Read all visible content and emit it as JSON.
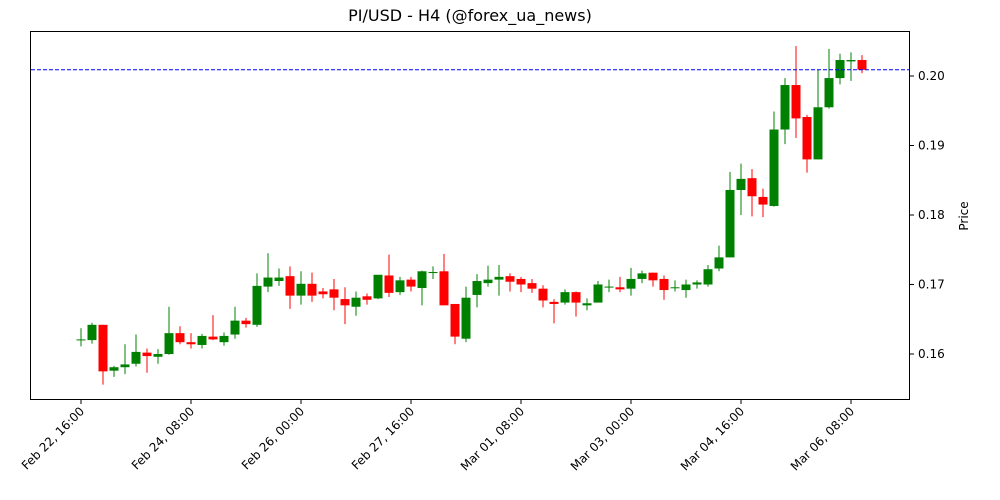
{
  "chart_data": {
    "type": "candlestick",
    "title": "PI/USD - H4 (@forex_ua_news)",
    "xlabel": "",
    "ylabel": "Price",
    "ylim": [
      0.1535,
      0.2064
    ],
    "y_ticks": [
      0.16,
      0.17,
      0.18,
      0.19,
      0.2
    ],
    "y_tick_labels": [
      "0.16",
      "0.17",
      "0.18",
      "0.19",
      "0.20"
    ],
    "x_tick_labels": [
      "Feb 22, 16:00",
      "Feb 24, 08:00",
      "Feb 26, 00:00",
      "Feb 27, 16:00",
      "Mar 01, 08:00",
      "Mar 03, 00:00",
      "Mar 04, 16:00",
      "Mar 06, 08:00"
    ],
    "x_tick_indices": [
      0,
      10,
      20,
      30,
      40,
      50,
      60,
      70
    ],
    "timeframe": "H4",
    "up_color": "#008000",
    "down_color": "#ff0000",
    "reference_line": {
      "value": 0.2009,
      "color": "#0000ff",
      "style": "dashed"
    },
    "grid": false,
    "candles": [
      {
        "o": 0.1621,
        "h": 0.1637,
        "l": 0.1611,
        "c": 0.1621
      },
      {
        "o": 0.162,
        "h": 0.1645,
        "l": 0.1615,
        "c": 0.1642
      },
      {
        "o": 0.1642,
        "h": 0.1642,
        "l": 0.1556,
        "c": 0.1575
      },
      {
        "o": 0.1576,
        "h": 0.1583,
        "l": 0.1567,
        "c": 0.1581
      },
      {
        "o": 0.1581,
        "h": 0.1614,
        "l": 0.1571,
        "c": 0.1585
      },
      {
        "o": 0.1586,
        "h": 0.1628,
        "l": 0.1582,
        "c": 0.1603
      },
      {
        "o": 0.1602,
        "h": 0.1608,
        "l": 0.1573,
        "c": 0.1597
      },
      {
        "o": 0.1596,
        "h": 0.1607,
        "l": 0.1586,
        "c": 0.16
      },
      {
        "o": 0.16,
        "h": 0.1668,
        "l": 0.1599,
        "c": 0.163
      },
      {
        "o": 0.163,
        "h": 0.164,
        "l": 0.1614,
        "c": 0.1617
      },
      {
        "o": 0.1617,
        "h": 0.163,
        "l": 0.1608,
        "c": 0.1614
      },
      {
        "o": 0.1613,
        "h": 0.1629,
        "l": 0.1608,
        "c": 0.1626
      },
      {
        "o": 0.1625,
        "h": 0.1656,
        "l": 0.162,
        "c": 0.1621
      },
      {
        "o": 0.1617,
        "h": 0.1631,
        "l": 0.1612,
        "c": 0.1626
      },
      {
        "o": 0.1628,
        "h": 0.1668,
        "l": 0.1622,
        "c": 0.1648
      },
      {
        "o": 0.1648,
        "h": 0.1652,
        "l": 0.1638,
        "c": 0.1643
      },
      {
        "o": 0.1642,
        "h": 0.1716,
        "l": 0.1639,
        "c": 0.1698
      },
      {
        "o": 0.1697,
        "h": 0.1745,
        "l": 0.1689,
        "c": 0.171
      },
      {
        "o": 0.1705,
        "h": 0.1723,
        "l": 0.1698,
        "c": 0.171
      },
      {
        "o": 0.1712,
        "h": 0.1726,
        "l": 0.1665,
        "c": 0.1684
      },
      {
        "o": 0.1684,
        "h": 0.1719,
        "l": 0.1671,
        "c": 0.1701
      },
      {
        "o": 0.1701,
        "h": 0.1717,
        "l": 0.1675,
        "c": 0.1684
      },
      {
        "o": 0.169,
        "h": 0.1695,
        "l": 0.168,
        "c": 0.1686
      },
      {
        "o": 0.1693,
        "h": 0.1708,
        "l": 0.1663,
        "c": 0.1681
      },
      {
        "o": 0.1679,
        "h": 0.1696,
        "l": 0.1643,
        "c": 0.167
      },
      {
        "o": 0.1668,
        "h": 0.169,
        "l": 0.1655,
        "c": 0.1681
      },
      {
        "o": 0.1683,
        "h": 0.1687,
        "l": 0.1671,
        "c": 0.1678
      },
      {
        "o": 0.168,
        "h": 0.1713,
        "l": 0.1679,
        "c": 0.1714
      },
      {
        "o": 0.1713,
        "h": 0.1743,
        "l": 0.1682,
        "c": 0.1688
      },
      {
        "o": 0.1689,
        "h": 0.1711,
        "l": 0.1685,
        "c": 0.1706
      },
      {
        "o": 0.1707,
        "h": 0.1711,
        "l": 0.169,
        "c": 0.1697
      },
      {
        "o": 0.1695,
        "h": 0.172,
        "l": 0.167,
        "c": 0.1719
      },
      {
        "o": 0.1718,
        "h": 0.1726,
        "l": 0.1708,
        "c": 0.1718
      },
      {
        "o": 0.1719,
        "h": 0.1744,
        "l": 0.1686,
        "c": 0.167
      },
      {
        "o": 0.1672,
        "h": 0.1672,
        "l": 0.1614,
        "c": 0.1625
      },
      {
        "o": 0.1622,
        "h": 0.1697,
        "l": 0.1617,
        "c": 0.1681
      },
      {
        "o": 0.1685,
        "h": 0.1715,
        "l": 0.1667,
        "c": 0.1705
      },
      {
        "o": 0.1702,
        "h": 0.1727,
        "l": 0.1697,
        "c": 0.1707
      },
      {
        "o": 0.1707,
        "h": 0.1728,
        "l": 0.1684,
        "c": 0.1711
      },
      {
        "o": 0.1712,
        "h": 0.1716,
        "l": 0.169,
        "c": 0.1704
      },
      {
        "o": 0.1708,
        "h": 0.1711,
        "l": 0.1689,
        "c": 0.17
      },
      {
        "o": 0.1702,
        "h": 0.1708,
        "l": 0.1688,
        "c": 0.1694
      },
      {
        "o": 0.1694,
        "h": 0.1699,
        "l": 0.1667,
        "c": 0.1677
      },
      {
        "o": 0.1675,
        "h": 0.1679,
        "l": 0.1644,
        "c": 0.1672
      },
      {
        "o": 0.1674,
        "h": 0.1693,
        "l": 0.1671,
        "c": 0.1689
      },
      {
        "o": 0.1689,
        "h": 0.169,
        "l": 0.1654,
        "c": 0.1674
      },
      {
        "o": 0.167,
        "h": 0.168,
        "l": 0.1663,
        "c": 0.1673
      },
      {
        "o": 0.1674,
        "h": 0.1705,
        "l": 0.1674,
        "c": 0.17
      },
      {
        "o": 0.1697,
        "h": 0.1707,
        "l": 0.1689,
        "c": 0.1697
      },
      {
        "o": 0.1696,
        "h": 0.1711,
        "l": 0.1689,
        "c": 0.1693
      },
      {
        "o": 0.1694,
        "h": 0.1724,
        "l": 0.1684,
        "c": 0.1708
      },
      {
        "o": 0.1708,
        "h": 0.172,
        "l": 0.1702,
        "c": 0.1716
      },
      {
        "o": 0.1717,
        "h": 0.1717,
        "l": 0.1697,
        "c": 0.1706
      },
      {
        "o": 0.1708,
        "h": 0.1713,
        "l": 0.1678,
        "c": 0.1692
      },
      {
        "o": 0.1696,
        "h": 0.1706,
        "l": 0.169,
        "c": 0.1696
      },
      {
        "o": 0.1692,
        "h": 0.1707,
        "l": 0.1681,
        "c": 0.17
      },
      {
        "o": 0.17,
        "h": 0.1706,
        "l": 0.1694,
        "c": 0.1703
      },
      {
        "o": 0.17,
        "h": 0.1728,
        "l": 0.1697,
        "c": 0.1722
      },
      {
        "o": 0.1723,
        "h": 0.1756,
        "l": 0.1719,
        "c": 0.1739
      },
      {
        "o": 0.1739,
        "h": 0.1862,
        "l": 0.1739,
        "c": 0.1836
      },
      {
        "o": 0.1836,
        "h": 0.1874,
        "l": 0.18,
        "c": 0.1852
      },
      {
        "o": 0.1853,
        "h": 0.1866,
        "l": 0.1798,
        "c": 0.1827
      },
      {
        "o": 0.1826,
        "h": 0.1838,
        "l": 0.1797,
        "c": 0.1815
      },
      {
        "o": 0.1813,
        "h": 0.1949,
        "l": 0.1812,
        "c": 0.1923
      },
      {
        "o": 0.1923,
        "h": 0.1997,
        "l": 0.1902,
        "c": 0.1987
      },
      {
        "o": 0.1987,
        "h": 0.2043,
        "l": 0.1911,
        "c": 0.1939
      },
      {
        "o": 0.1941,
        "h": 0.1944,
        "l": 0.1861,
        "c": 0.188
      },
      {
        "o": 0.188,
        "h": 0.2009,
        "l": 0.188,
        "c": 0.1955
      },
      {
        "o": 0.1955,
        "h": 0.2039,
        "l": 0.1953,
        "c": 0.1997
      },
      {
        "o": 0.1997,
        "h": 0.2032,
        "l": 0.1988,
        "c": 0.2023
      },
      {
        "o": 0.2021,
        "h": 0.2034,
        "l": 0.1993,
        "c": 0.2023
      },
      {
        "o": 0.2023,
        "h": 0.203,
        "l": 0.2004,
        "c": 0.2009
      }
    ]
  }
}
